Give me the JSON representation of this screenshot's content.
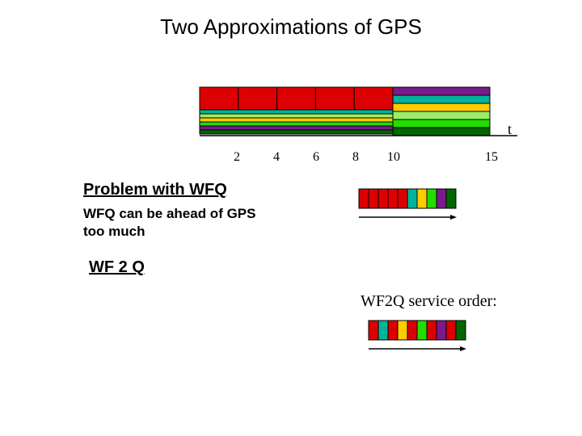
{
  "title": "Two Approximations of GPS",
  "axis": {
    "t_label": "t",
    "ticks": [
      "2",
      "4",
      "6",
      "8",
      "10",
      "15"
    ]
  },
  "colors": {
    "red": "#dd0000",
    "teal": "#00b39a",
    "yellow": "#ffcc00",
    "green": "#22dd00",
    "purple": "#7a1a8c",
    "darkgreen": "#006600",
    "light_green": "#99ee66"
  },
  "gps_timeline": {
    "red_packets": 5,
    "thin_flow_colors": [
      "teal",
      "light_green",
      "yellow",
      "green",
      "purple",
      "darkgreen"
    ],
    "tail_flow_colors": [
      "purple",
      "teal",
      "yellow",
      "light_green",
      "green",
      "darkgreen"
    ]
  },
  "problem": {
    "heading": "Problem with WFQ",
    "text_line1": "WFQ can be ahead of GPS",
    "text_line2": "too much"
  },
  "wfq_order": [
    "red",
    "red",
    "red",
    "red",
    "red",
    "teal",
    "yellow",
    "green",
    "purple",
    "darkgreen"
  ],
  "wf2q": {
    "heading": "WF 2 Q",
    "service_label": "WF2Q service order:",
    "order": [
      "red",
      "teal",
      "red",
      "yellow",
      "red",
      "green",
      "red",
      "purple",
      "red",
      "darkgreen"
    ]
  }
}
